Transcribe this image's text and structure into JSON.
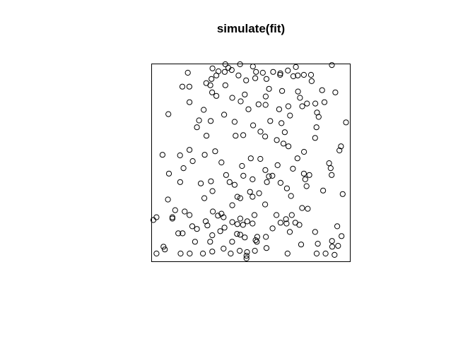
{
  "colors": {
    "background": "#ffffff",
    "ink": "#000000"
  },
  "chart_data": {
    "type": "scatter",
    "title": "simulate(fit)",
    "xlabel": "",
    "ylabel": "",
    "xlim": [
      0,
      1
    ],
    "ylim": [
      0,
      1
    ],
    "grid": false,
    "axes_shown": false,
    "box": true,
    "marker": "open-circle",
    "points": [
      [
        0.177,
        0.957
      ],
      [
        0.149,
        0.886
      ],
      [
        0.185,
        0.886
      ],
      [
        0.272,
        0.904
      ],
      [
        0.304,
        0.979
      ],
      [
        0.324,
        0.943
      ],
      [
        0.335,
        0.964
      ],
      [
        0.37,
        1.0
      ],
      [
        0.386,
        0.982
      ],
      [
        0.446,
        1.0
      ],
      [
        0.367,
        0.961
      ],
      [
        0.512,
        0.989
      ],
      [
        0.528,
        0.961
      ],
      [
        0.563,
        0.957
      ],
      [
        0.582,
        0.925
      ],
      [
        0.616,
        0.961
      ],
      [
        0.653,
        0.954
      ],
      [
        0.733,
        0.986
      ],
      [
        0.814,
        0.914
      ],
      [
        0.918,
        0.996
      ],
      [
        0.299,
        0.925
      ],
      [
        0.403,
        0.971
      ],
      [
        0.438,
        0.943
      ],
      [
        0.477,
        0.918
      ],
      [
        0.524,
        0.929
      ],
      [
        0.595,
        0.875
      ],
      [
        0.662,
        0.864
      ],
      [
        0.754,
        0.829
      ],
      [
        0.868,
        0.868
      ],
      [
        0.293,
        0.893
      ],
      [
        0.302,
        0.857
      ],
      [
        0.324,
        0.839
      ],
      [
        0.37,
        0.893
      ],
      [
        0.406,
        0.829
      ],
      [
        0.489,
        0.771
      ],
      [
        0.541,
        0.796
      ],
      [
        0.578,
        0.836
      ],
      [
        0.577,
        0.793
      ],
      [
        0.647,
        0.771
      ],
      [
        0.694,
        0.786
      ],
      [
        0.88,
        0.807
      ],
      [
        0.936,
        0.857
      ],
      [
        0.842,
        0.754
      ],
      [
        0.85,
        0.732
      ],
      [
        0.957,
        0.561
      ],
      [
        0.077,
        0.746
      ],
      [
        0.186,
        0.807
      ],
      [
        0.259,
        0.768
      ],
      [
        0.224,
        0.679
      ],
      [
        0.273,
        0.636
      ],
      [
        0.235,
        0.714
      ],
      [
        0.295,
        0.711
      ],
      [
        0.364,
        0.743
      ],
      [
        0.418,
        0.707
      ],
      [
        0.423,
        0.636
      ],
      [
        0.462,
        0.639
      ],
      [
        0.575,
        0.632
      ],
      [
        0.635,
        0.614
      ],
      [
        0.695,
        0.582
      ],
      [
        0.775,
        0.554
      ],
      [
        0.839,
        0.679
      ],
      [
        0.832,
        0.625
      ],
      [
        0.991,
        0.704
      ],
      [
        0.047,
        0.539
      ],
      [
        0.08,
        0.443
      ],
      [
        0.138,
        0.4
      ],
      [
        0.202,
        0.507
      ],
      [
        0.244,
        0.393
      ],
      [
        0.264,
        0.539
      ],
      [
        0.304,
        0.354
      ],
      [
        0.318,
        0.557
      ],
      [
        0.374,
        0.436
      ],
      [
        0.418,
        0.386
      ],
      [
        0.432,
        0.325
      ],
      [
        0.501,
        0.521
      ],
      [
        0.55,
        0.518
      ],
      [
        0.576,
        0.461
      ],
      [
        0.584,
        0.4
      ],
      [
        0.594,
        0.429
      ],
      [
        0.654,
        0.396
      ],
      [
        0.687,
        0.368
      ],
      [
        0.718,
        0.468
      ],
      [
        0.708,
        0.329
      ],
      [
        0.781,
        0.414
      ],
      [
        0.788,
        0.379
      ],
      [
        0.794,
        0.264
      ],
      [
        0.873,
        0.357
      ],
      [
        0.904,
        0.496
      ],
      [
        0.917,
        0.436
      ],
      [
        0.0,
        0.207
      ],
      [
        0.016,
        0.221
      ],
      [
        0.098,
        0.221
      ],
      [
        0.112,
        0.257
      ],
      [
        0.161,
        0.25
      ],
      [
        0.2,
        0.175
      ],
      [
        0.269,
        0.2
      ],
      [
        0.292,
        0.096
      ],
      [
        0.332,
        0.229
      ],
      [
        0.366,
        0.168
      ],
      [
        0.406,
        0.196
      ],
      [
        0.43,
        0.136
      ],
      [
        0.447,
        0.132
      ],
      [
        0.483,
        0.2
      ],
      [
        0.51,
        0.189
      ],
      [
        0.534,
        0.121
      ],
      [
        0.579,
        0.121
      ],
      [
        0.654,
        0.193
      ],
      [
        0.712,
        0.232
      ],
      [
        0.73,
        0.193
      ],
      [
        0.751,
        0.182
      ],
      [
        0.765,
        0.268
      ],
      [
        0.832,
        0.146
      ],
      [
        0.932,
        0.029
      ],
      [
        0.946,
        0.175
      ],
      [
        0.016,
        0.036
      ],
      [
        0.059,
        0.057
      ],
      [
        0.14,
        0.036
      ],
      [
        0.187,
        0.036
      ],
      [
        0.255,
        0.036
      ],
      [
        0.361,
        0.061
      ],
      [
        0.398,
        0.036
      ],
      [
        0.482,
        0.043
      ],
      [
        0.522,
        0.05
      ],
      [
        0.582,
        0.064
      ],
      [
        0.69,
        0.036
      ],
      [
        0.84,
        0.036
      ],
      [
        0.919,
        0.1
      ],
      [
        0.974,
        0.339
      ],
      [
        0.95,
        0.075
      ],
      [
        0.965,
        0.582
      ],
      [
        0.214,
        0.096
      ],
      [
        0.303,
        0.046
      ],
      [
        0.479,
        0.011
      ],
      [
        0.444,
        0.05
      ],
      [
        0.532,
        0.096
      ],
      [
        0.613,
        0.164
      ],
      [
        0.76,
        0.082
      ],
      [
        0.846,
        0.086
      ],
      [
        0.886,
        0.036
      ],
      [
        0.968,
        0.125
      ],
      [
        0.137,
        0.536
      ],
      [
        0.186,
        0.564
      ],
      [
        0.262,
        0.318
      ],
      [
        0.296,
        0.404
      ],
      [
        0.35,
        0.5
      ],
      [
        0.392,
        0.4
      ],
      [
        0.456,
        0.482
      ],
      [
        0.51,
        0.414
      ],
      [
        0.544,
        0.343
      ],
      [
        0.612,
        0.432
      ],
      [
        0.639,
        0.486
      ],
      [
        0.669,
        0.596
      ],
      [
        0.741,
        0.521
      ],
      [
        0.774,
        0.443
      ],
      [
        0.802,
        0.436
      ],
      [
        0.912,
        0.471
      ],
      [
        0.463,
        0.432
      ],
      [
        0.35,
        0.239
      ],
      [
        0.406,
        0.282
      ],
      [
        0.461,
        0.182
      ],
      [
        0.52,
        0.232
      ],
      [
        0.575,
        0.286
      ],
      [
        0.633,
        0.232
      ],
      [
        0.682,
        0.211
      ],
      [
        0.685,
        0.189
      ],
      [
        0.702,
        0.146
      ],
      [
        0.447,
        0.318
      ],
      [
        0.497,
        0.35
      ],
      [
        0.51,
        0.325
      ],
      [
        0.447,
        0.214
      ],
      [
        0.526,
        0.104
      ],
      [
        0.432,
        0.186
      ],
      [
        0.47,
        0.118
      ],
      [
        0.405,
        0.096
      ],
      [
        0.344,
        0.15
      ],
      [
        0.303,
        0.129
      ],
      [
        0.306,
        0.25
      ],
      [
        0.361,
        0.221
      ],
      [
        0.278,
        0.179
      ],
      [
        0.224,
        0.161
      ],
      [
        0.186,
        0.232
      ],
      [
        0.155,
        0.471
      ],
      [
        0.075,
        0.311
      ],
      [
        0.128,
        0.139
      ],
      [
        0.052,
        0.071
      ],
      [
        0.47,
        0.846
      ],
      [
        0.449,
        0.811
      ],
      [
        0.513,
        0.689
      ],
      [
        0.551,
        0.657
      ],
      [
        0.601,
        0.711
      ],
      [
        0.659,
        0.7
      ],
      [
        0.676,
        0.654
      ],
      [
        0.703,
        0.739
      ],
      [
        0.766,
        0.786
      ],
      [
        0.79,
        0.8
      ],
      [
        0.833,
        0.8
      ],
      [
        0.744,
        0.861
      ],
      [
        0.72,
        0.939
      ],
      [
        0.692,
        0.968
      ],
      [
        0.652,
        0.946
      ],
      [
        0.743,
        0.943
      ],
      [
        0.774,
        0.946
      ],
      [
        0.811,
        0.946
      ],
      [
        0.92,
        0.071
      ],
      [
        0.479,
        0.025
      ],
      [
        0.15,
        0.139
      ],
      [
        0.098,
        0.214
      ]
    ]
  }
}
